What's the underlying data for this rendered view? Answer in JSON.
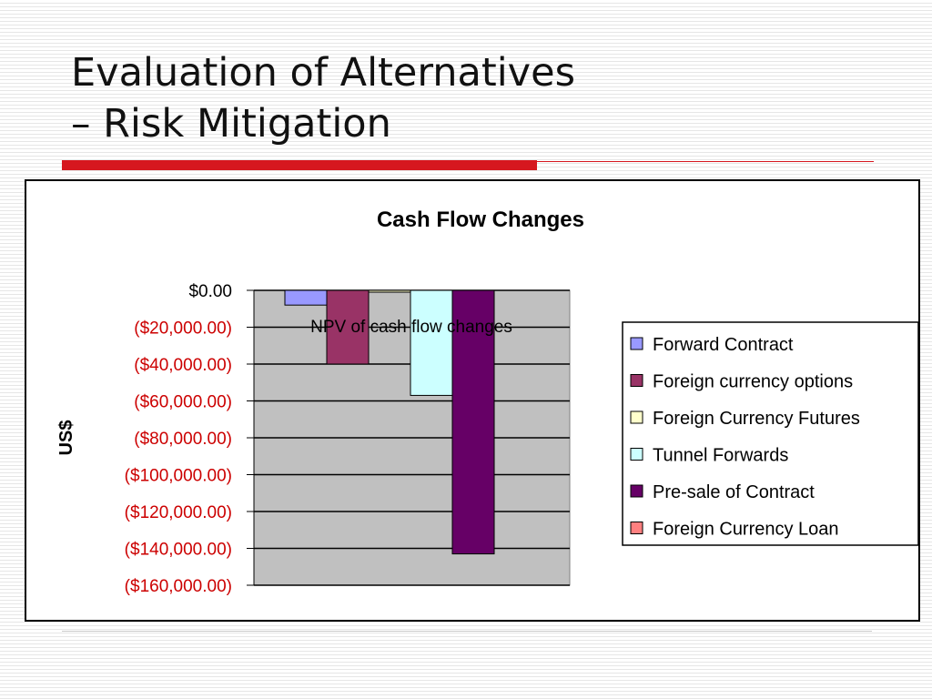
{
  "slide": {
    "title_line1": "Evaluation of Alternatives",
    "title_line2": "– Risk Mitigation"
  },
  "colors": {
    "accent_red": "#d6171f",
    "plot_bg": "#c0c0c0",
    "negative_tick": "#cc0000"
  },
  "chart_data": {
    "type": "bar",
    "title": "Cash Flow Changes",
    "xlabel": "",
    "ylabel": "US$",
    "categories": [
      "NPV of cash flow changes"
    ],
    "ylim": [
      -160000,
      0
    ],
    "yticks": [
      0,
      -20000,
      -40000,
      -60000,
      -80000,
      -100000,
      -120000,
      -140000,
      -160000
    ],
    "ytick_labels": [
      "$0.00",
      "($20,000.00)",
      "($40,000.00)",
      "($60,000.00)",
      "($80,000.00)",
      "($100,000.00)",
      "($120,000.00)",
      "($140,000.00)",
      "($160,000.00)"
    ],
    "grid": true,
    "legend_position": "right",
    "series": [
      {
        "name": "Forward Contract",
        "values": [
          -8000
        ],
        "color": "#9999ff"
      },
      {
        "name": "Foreign currency options",
        "values": [
          -40000
        ],
        "color": "#993366"
      },
      {
        "name": "Foreign Currency Futures",
        "values": [
          -1000
        ],
        "color": "#ffffcc"
      },
      {
        "name": "Tunnel Forwards",
        "values": [
          -57000
        ],
        "color": "#ccffff"
      },
      {
        "name": "Pre-sale of Contract",
        "values": [
          -143000
        ],
        "color": "#660066"
      },
      {
        "name": "Foreign Currency Loan",
        "values": [
          0
        ],
        "color": "#ff8080"
      }
    ]
  }
}
